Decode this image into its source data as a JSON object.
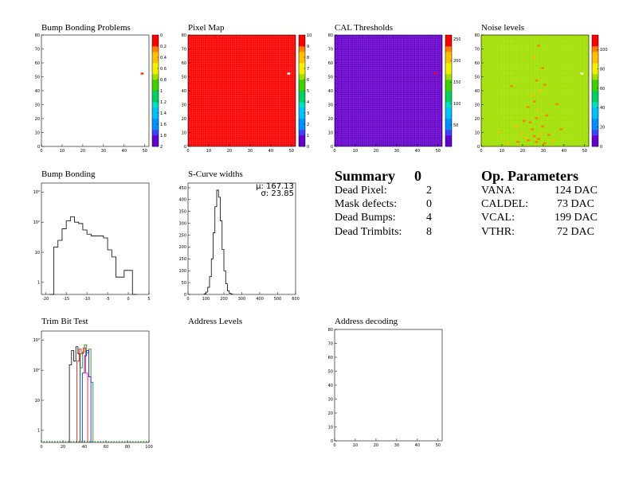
{
  "chart_data": [
    {
      "id": "bump_map",
      "type": "heatmap",
      "title": "Bump Bonding Problems",
      "x_ticks": [
        "0",
        "10",
        "20",
        "30",
        "40",
        "50"
      ],
      "y_ticks": [
        "0",
        "10",
        "20",
        "30",
        "40",
        "50",
        "60",
        "70",
        "80"
      ],
      "z_ticks": [
        "0",
        "0.2",
        "0.4",
        "0.6",
        "0.8",
        "1",
        "1.2",
        "1.4",
        "1.6",
        "1.8",
        "2"
      ],
      "xlim": [
        0,
        52
      ],
      "ylim": [
        0,
        80
      ],
      "hot_cells": [
        {
          "x": 48,
          "y": 52,
          "z": 0
        }
      ],
      "background": "empty"
    },
    {
      "id": "pixel_map",
      "type": "heatmap",
      "title": "Pixel Map",
      "x_ticks": [
        "0",
        "10",
        "20",
        "30",
        "40",
        "50"
      ],
      "y_ticks": [
        "0",
        "10",
        "20",
        "30",
        "40",
        "50",
        "60",
        "70",
        "80"
      ],
      "z_ticks": [
        "0",
        "1",
        "2",
        "3",
        "4",
        "5",
        "6",
        "7",
        "8",
        "9",
        "10"
      ],
      "xlim": [
        0,
        52
      ],
      "ylim": [
        0,
        80
      ],
      "fill_value": 10,
      "hot_cells": [
        {
          "x": 48,
          "y": 52,
          "z": 0
        }
      ]
    },
    {
      "id": "cal_thresholds",
      "type": "heatmap",
      "title": "CAL Thresholds",
      "x_ticks": [
        "0",
        "10",
        "20",
        "30",
        "40",
        "50"
      ],
      "y_ticks": [
        "0",
        "10",
        "20",
        "30",
        "40",
        "50",
        "60",
        "70",
        "80"
      ],
      "z_ticks": [
        "50",
        "100",
        "150",
        "200",
        "250"
      ],
      "xlim": [
        0,
        52
      ],
      "ylim": [
        0,
        80
      ],
      "fill_value": 5,
      "hot_cells": [
        {
          "x": 48,
          "y": 52,
          "z": 250
        }
      ]
    },
    {
      "id": "noise_levels",
      "type": "heatmap",
      "title": "Noise levels",
      "x_ticks": [
        "0",
        "10",
        "20",
        "30",
        "40",
        "50"
      ],
      "y_ticks": [
        "0",
        "10",
        "20",
        "30",
        "40",
        "50",
        "60",
        "70",
        "80"
      ],
      "z_ticks": [
        "0",
        "20",
        "40",
        "60",
        "80",
        "100"
      ],
      "xlim": [
        0,
        52
      ],
      "ylim": [
        0,
        80
      ],
      "fill_value": 68,
      "hot_cells": [
        {
          "x": 48,
          "y": 52,
          "z": 0
        },
        {
          "x": 26,
          "y": 3,
          "z": 100
        },
        {
          "x": 27,
          "y": 5,
          "z": 100
        },
        {
          "x": 25,
          "y": 7,
          "z": 100
        },
        {
          "x": 28,
          "y": 9,
          "z": 95
        },
        {
          "x": 22,
          "y": 4,
          "z": 100
        },
        {
          "x": 30,
          "y": 2,
          "z": 100
        },
        {
          "x": 24,
          "y": 12,
          "z": 100
        },
        {
          "x": 21,
          "y": 6,
          "z": 95
        },
        {
          "x": 29,
          "y": 14,
          "z": 100
        },
        {
          "x": 23,
          "y": 17,
          "z": 100
        },
        {
          "x": 26,
          "y": 20,
          "z": 100
        },
        {
          "x": 27,
          "y": 26,
          "z": 95
        },
        {
          "x": 25,
          "y": 32,
          "z": 100
        },
        {
          "x": 28,
          "y": 40,
          "z": 95
        },
        {
          "x": 26,
          "y": 47,
          "z": 100
        },
        {
          "x": 29,
          "y": 56,
          "z": 100
        },
        {
          "x": 25,
          "y": 64,
          "z": 95
        },
        {
          "x": 27,
          "y": 72,
          "z": 100
        },
        {
          "x": 19,
          "y": 9,
          "z": 95
        },
        {
          "x": 32,
          "y": 8,
          "z": 100
        },
        {
          "x": 20,
          "y": 18,
          "z": 100
        },
        {
          "x": 34,
          "y": 4,
          "z": 95
        },
        {
          "x": 17,
          "y": 3,
          "z": 100
        },
        {
          "x": 31,
          "y": 22,
          "z": 100
        },
        {
          "x": 22,
          "y": 28,
          "z": 100
        },
        {
          "x": 16,
          "y": 14,
          "z": 95
        },
        {
          "x": 14,
          "y": 43,
          "z": 100
        },
        {
          "x": 12,
          "y": 2,
          "z": 95
        },
        {
          "x": 38,
          "y": 12,
          "z": 100
        },
        {
          "x": 8,
          "y": 10,
          "z": 95
        },
        {
          "x": 36,
          "y": 30,
          "z": 100
        },
        {
          "x": 24,
          "y": 36,
          "z": 95
        },
        {
          "x": 30,
          "y": 44,
          "z": 100
        }
      ]
    },
    {
      "id": "bump_bonding",
      "type": "histogram",
      "title": "Bump Bonding",
      "log_y": true,
      "x_ticks": [
        "-20",
        "-15",
        "-10",
        "-5",
        "0",
        "5"
      ],
      "y_ticks": [
        "1",
        "10",
        "10²",
        "10³"
      ],
      "xlim": [
        -21,
        5
      ],
      "edges": [
        -19,
        -18,
        -17,
        -16,
        -15,
        -14,
        -13,
        -12,
        -11,
        -10,
        -9,
        -8,
        -7,
        -6,
        -5,
        -4,
        -3,
        -2,
        -1,
        0,
        1,
        2
      ],
      "values": [
        0,
        15,
        25,
        60,
        110,
        150,
        100,
        90,
        55,
        40,
        35,
        35,
        35,
        30,
        12,
        7,
        1.5,
        1.5,
        2.5,
        2.5,
        0
      ]
    },
    {
      "id": "scurve_widths",
      "type": "histogram",
      "title": "S-Curve widths",
      "x_ticks": [
        "0",
        "100",
        "200",
        "300",
        "400",
        "500",
        "600"
      ],
      "y_ticks": [
        "0",
        "50",
        "100",
        "150",
        "200",
        "250",
        "300",
        "350",
        "400",
        "450"
      ],
      "xlim": [
        0,
        600
      ],
      "ylim": [
        0,
        470
      ],
      "edges": [
        90,
        100,
        110,
        120,
        130,
        140,
        150,
        160,
        170,
        180,
        190,
        200,
        210,
        220,
        230,
        240,
        250
      ],
      "values": [
        3,
        10,
        30,
        75,
        150,
        260,
        370,
        440,
        410,
        310,
        190,
        100,
        45,
        15,
        5,
        1
      ],
      "stats": {
        "mean_label": "μ: 167.13",
        "sigma_label": "σ: 23.85"
      }
    },
    {
      "id": "trim_bit_test",
      "type": "histogram",
      "title": "Trim Bit Test",
      "log_y": true,
      "x_ticks": [
        "0",
        "20",
        "40",
        "60",
        "80",
        "100"
      ],
      "y_ticks": [
        "1",
        "10",
        "10²",
        "10³"
      ],
      "xlim": [
        0,
        100
      ],
      "series": [
        {
          "color": "#000000",
          "edges": [
            26,
            28,
            30,
            32,
            34,
            36
          ],
          "values": [
            150,
            450,
            200,
            600,
            350
          ]
        },
        {
          "color": "#ff0000",
          "edges": [
            33,
            35,
            37,
            39,
            41,
            43
          ],
          "values": [
            200,
            500,
            350,
            550,
            80
          ]
        },
        {
          "color": "#008800",
          "edges": [
            36,
            38,
            40,
            42,
            44,
            46,
            48
          ],
          "values": [
            120,
            400,
            700,
            380,
            500,
            40
          ]
        },
        {
          "color": "#0000ff",
          "edges": [
            38,
            40,
            42,
            44,
            46
          ],
          "values": [
            80,
            300,
            450,
            60
          ]
        }
      ]
    },
    {
      "id": "address_levels",
      "type": "histogram",
      "title": "Address Levels",
      "empty": true
    },
    {
      "id": "address_decoding",
      "type": "heatmap",
      "title": "Address decoding",
      "x_ticks": [
        "0",
        "10",
        "20",
        "30",
        "40",
        "50"
      ],
      "y_ticks": [
        "0",
        "10",
        "20",
        "30",
        "40",
        "50",
        "60",
        "70",
        "80"
      ],
      "xlim": [
        0,
        52
      ],
      "ylim": [
        0,
        80
      ],
      "empty": true
    }
  ],
  "summary": {
    "title": "Summary",
    "number": "0",
    "rows": [
      {
        "label": "Dead Pixel:",
        "value": "2"
      },
      {
        "label": "Mask defects:",
        "value": "0"
      },
      {
        "label": "Dead Bumps:",
        "value": "4"
      },
      {
        "label": "Dead Trimbits:",
        "value": "8"
      }
    ]
  },
  "op_params": {
    "title": "Op. Parameters",
    "rows": [
      {
        "label": "VANA:",
        "value": "124 DAC"
      },
      {
        "label": "CALDEL:",
        "value": "73 DAC"
      },
      {
        "label": "VCAL:",
        "value": "199 DAC"
      },
      {
        "label": "VTHR:",
        "value": "72 DAC"
      }
    ]
  }
}
